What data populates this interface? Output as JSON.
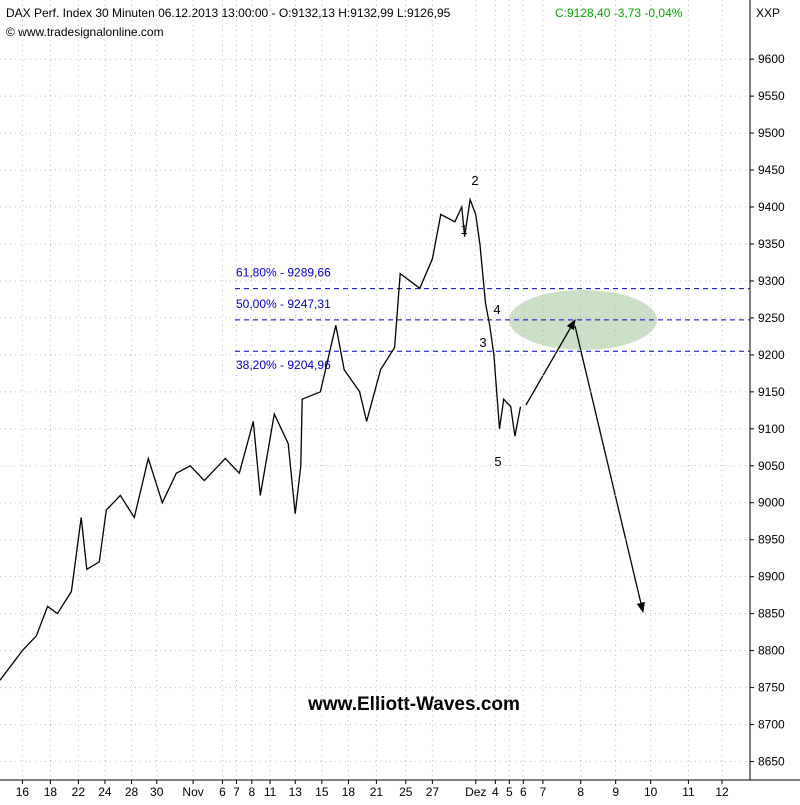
{
  "chart_data": {
    "type": "line",
    "title": "DAX Perf. Index 30 Minuten  06.12.2013 13:00:00 - O:9132,13 H:9132,99 L:9126,95",
    "quote": "C:9128,40 -3,73 -0,04%",
    "source": "© www.tradesignalonline.com",
    "symbol": "XXP",
    "watermark": "www.Elliott-Waves.com",
    "series": [
      {
        "name": "DAX",
        "color": "#000000",
        "x": [
          -1.6,
          0,
          1,
          1.8,
          2.5,
          3.5,
          4.2,
          4.6,
          5.5,
          6,
          7,
          8,
          9,
          10,
          11,
          12,
          13,
          14.5,
          15.5,
          16.5,
          17,
          18,
          19,
          19.5,
          19.9,
          20,
          21.3,
          22.4,
          23,
          24.1,
          24.6,
          25.6,
          26.6,
          27,
          28.4,
          29.3,
          29.9,
          30.9,
          31.4,
          31.6,
          32,
          32.4,
          32.7,
          33.1,
          33.4,
          33.7,
          34.1,
          34.4,
          34.9,
          35.2,
          35.6
        ],
        "values": [
          8760,
          8800,
          8820,
          8860,
          8850,
          8880,
          8980,
          8910,
          8920,
          8990,
          9010,
          8980,
          9060,
          9000,
          9040,
          9050,
          9030,
          9060,
          9040,
          9110,
          9010,
          9120,
          9080,
          8985,
          9050,
          9140,
          9150,
          9240,
          9180,
          9150,
          9110,
          9180,
          9210,
          9310,
          9290,
          9330,
          9390,
          9380,
          9400,
          9360,
          9410,
          9390,
          9350,
          9270,
          9240,
          9200,
          9100,
          9140,
          9130,
          9090,
          9130
        ]
      }
    ],
    "levels": [
      {
        "label": "61,80% - 9289,66",
        "value": 9289.66
      },
      {
        "label": "50,00% - 9247,31",
        "value": 9247.31
      },
      {
        "label": "38,20% - 9204,96",
        "value": 9204.96
      }
    ],
    "waves": [
      "1",
      "2",
      "3",
      "4",
      "5"
    ],
    "xlim": [
      -1.6,
      52
    ],
    "ylim": [
      8625,
      9680
    ],
    "yticks": [
      8650,
      8700,
      8750,
      8800,
      8850,
      8900,
      8950,
      9000,
      9050,
      9100,
      9150,
      9200,
      9250,
      9300,
      9350,
      9400,
      9450,
      9500,
      9550,
      9600
    ],
    "xticks": [
      {
        "value": 0,
        "label": "16"
      },
      {
        "value": 2,
        "label": "18"
      },
      {
        "value": 4,
        "label": "22"
      },
      {
        "value": 5.9,
        "label": "24"
      },
      {
        "value": 7.8,
        "label": "28"
      },
      {
        "value": 9.6,
        "label": "30"
      },
      {
        "value": 12.2,
        "label": "Nov"
      },
      {
        "value": 14.3,
        "label": "6"
      },
      {
        "value": 15.3,
        "label": "7"
      },
      {
        "value": 16.4,
        "label": "8"
      },
      {
        "value": 17.7,
        "label": "11"
      },
      {
        "value": 19.5,
        "label": "13"
      },
      {
        "value": 21.4,
        "label": "15"
      },
      {
        "value": 23.3,
        "label": "18"
      },
      {
        "value": 25.3,
        "label": "21"
      },
      {
        "value": 27.4,
        "label": "25"
      },
      {
        "value": 29.3,
        "label": "27"
      },
      {
        "value": 32.4,
        "label": "Dez"
      },
      {
        "value": 33.8,
        "label": "4"
      },
      {
        "value": 34.8,
        "label": "5"
      },
      {
        "value": 35.8,
        "label": "6"
      },
      {
        "value": 37.2,
        "label": "7"
      },
      {
        "value": 39.9,
        "label": "8"
      },
      {
        "value": 42.4,
        "label": "9"
      },
      {
        "value": 44.9,
        "label": "10"
      },
      {
        "value": 47.6,
        "label": "11"
      },
      {
        "value": 50,
        "label": "12"
      }
    ],
    "grid": true
  }
}
